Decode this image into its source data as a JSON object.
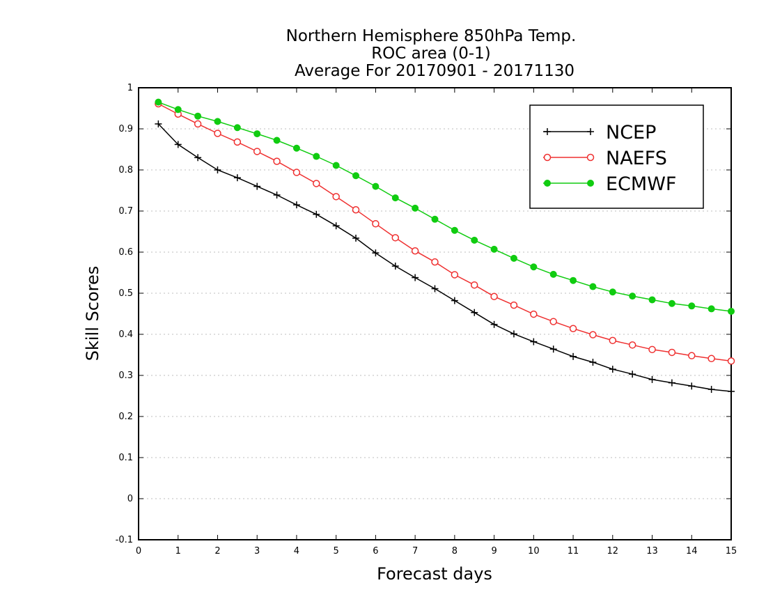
{
  "chart_data": {
    "type": "line",
    "title": [
      "Northern Hemisphere 850hPa Temp.",
      "ROC area (0-1)",
      "Average For 20170901 - 20171130"
    ],
    "xlabel": "Forecast days",
    "ylabel": "Skill Scores",
    "xlim": [
      0,
      15
    ],
    "ylim": [
      -0.1,
      1
    ],
    "xticks": [
      0,
      1,
      2,
      3,
      4,
      5,
      6,
      7,
      8,
      9,
      10,
      11,
      12,
      13,
      14,
      15
    ],
    "xtick_labels": [
      "0",
      "1",
      "2",
      "3",
      "4",
      "5",
      "6",
      "7",
      "8",
      "9",
      "10",
      "11",
      "12",
      "13",
      "14",
      "15"
    ],
    "yticks": [
      -0.1,
      0,
      0.1,
      0.2,
      0.3,
      0.4,
      0.5,
      0.6,
      0.7,
      0.8,
      0.9,
      1
    ],
    "ytick_labels": [
      "-0.1",
      "0",
      "0.1",
      "0.2",
      "0.3",
      "0.4",
      "0.5",
      "0.6",
      "0.7",
      "0.8",
      "0.9",
      "1"
    ],
    "grid": "horizontal dotted",
    "legend_position": "top-right",
    "x": [
      0.5,
      1,
      1.5,
      2,
      2.5,
      3,
      3.5,
      4,
      4.5,
      5,
      5.5,
      6,
      6.5,
      7,
      7.5,
      8,
      8.5,
      9,
      9.5,
      10,
      10.5,
      11,
      11.5,
      12,
      12.5,
      13,
      13.5,
      14,
      14.5,
      15
    ],
    "series": [
      {
        "name": "NCEP",
        "color": "#000000",
        "marker": "plus",
        "values": [
          0.912,
          0.862,
          0.83,
          0.8,
          0.781,
          0.76,
          0.739,
          0.715,
          0.692,
          0.664,
          0.634,
          0.598,
          0.566,
          0.538,
          0.511,
          0.482,
          0.453,
          0.424,
          0.401,
          0.382,
          0.364,
          0.346,
          0.332,
          0.315,
          0.303,
          0.29,
          0.282,
          0.274,
          0.266,
          0.261
        ]
      },
      {
        "name": "NAEFS",
        "color": "#ef3030",
        "marker": "open-circle",
        "values": [
          0.961,
          0.936,
          0.912,
          0.889,
          0.868,
          0.845,
          0.821,
          0.794,
          0.767,
          0.735,
          0.703,
          0.669,
          0.635,
          0.603,
          0.576,
          0.545,
          0.52,
          0.492,
          0.471,
          0.449,
          0.431,
          0.414,
          0.399,
          0.385,
          0.374,
          0.363,
          0.356,
          0.348,
          0.341,
          0.335
        ]
      },
      {
        "name": "ECMWF",
        "color": "#10cc10",
        "marker": "filled-circle",
        "values": [
          0.965,
          0.947,
          0.931,
          0.918,
          0.903,
          0.888,
          0.872,
          0.853,
          0.833,
          0.811,
          0.786,
          0.76,
          0.732,
          0.707,
          0.68,
          0.653,
          0.629,
          0.607,
          0.585,
          0.564,
          0.546,
          0.531,
          0.516,
          0.503,
          0.493,
          0.484,
          0.475,
          0.469,
          0.462,
          0.456
        ]
      }
    ]
  }
}
